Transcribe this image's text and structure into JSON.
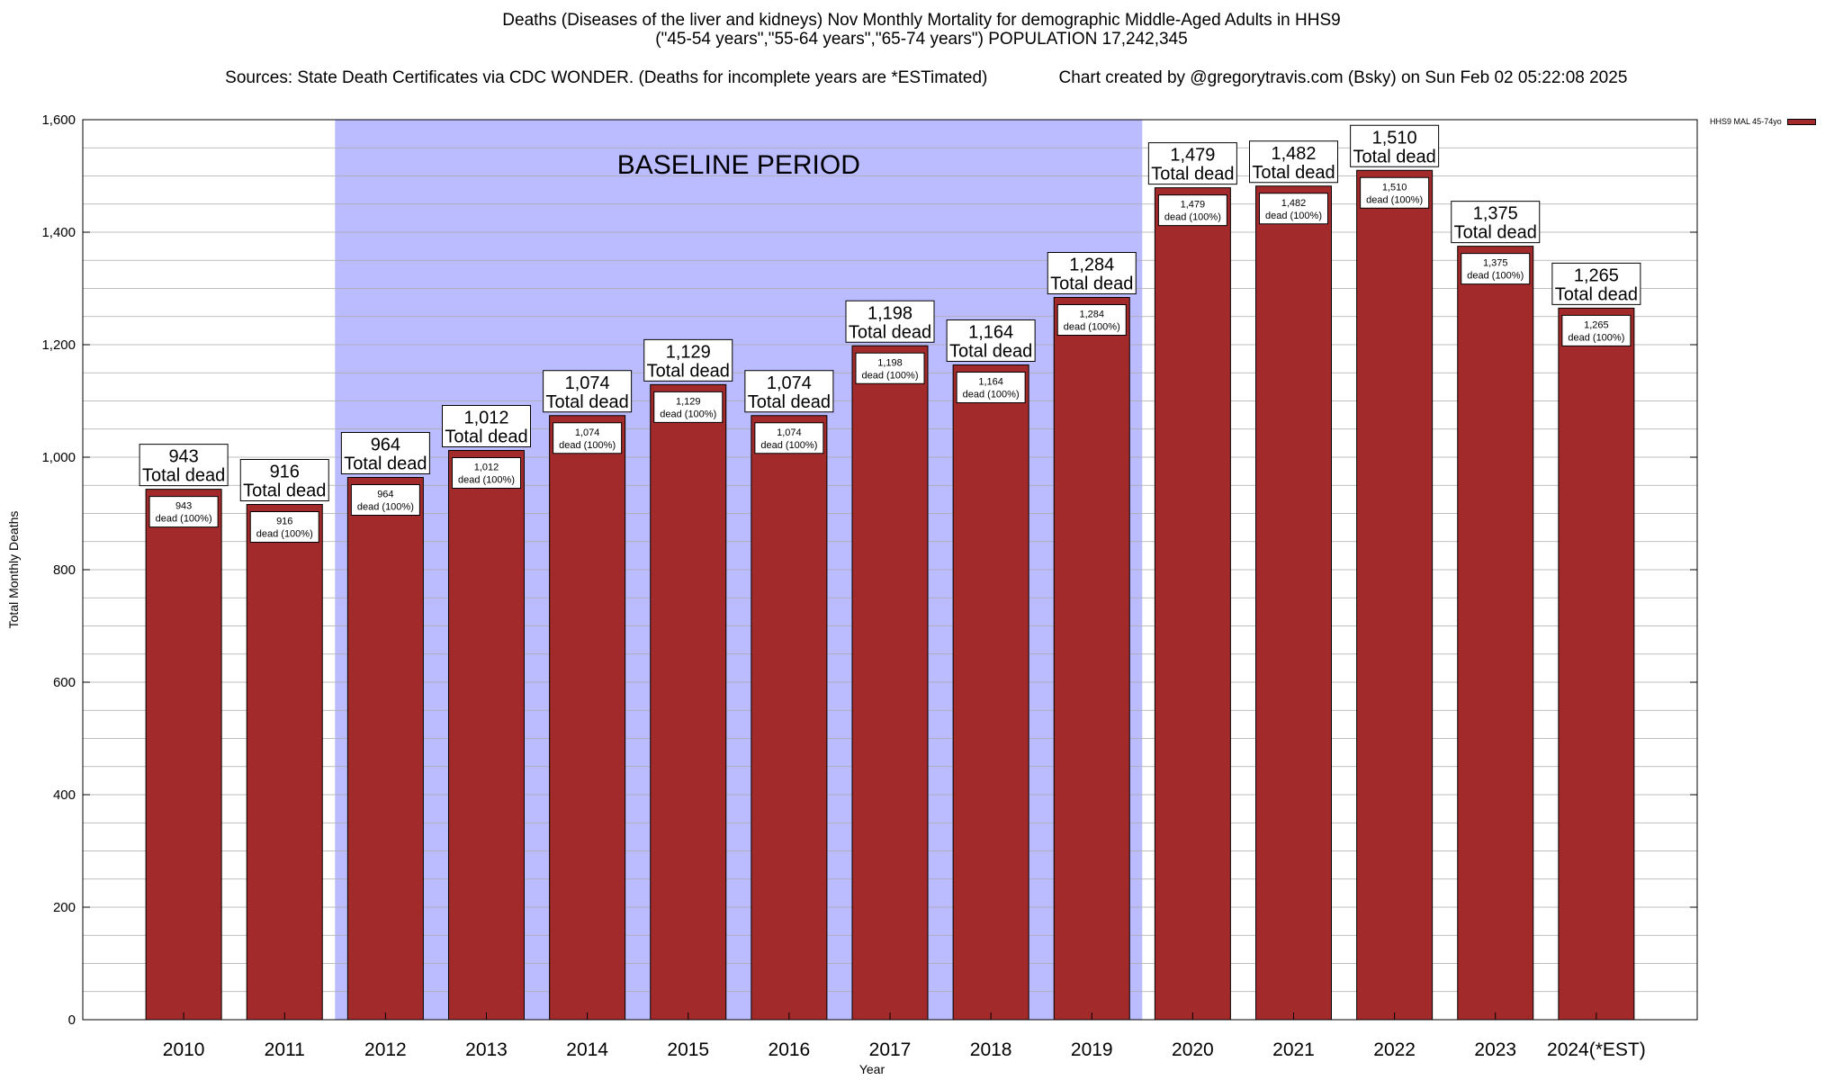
{
  "title": {
    "line1": "Deaths (Diseases of the liver and kidneys) Nov Monthly Mortality for demographic Middle-Aged Adults in HHS9",
    "line2": "(\"45-54 years\",\"55-64 years\",\"65-74 years\") POPULATION 17,242,345",
    "line3_left": "Sources: State Death Certificates via CDC WONDER. (Deaths for incomplete years are *ESTimated)",
    "line3_right": "Chart created by @gregorytravis.com (Bsky) on Sun Feb 02 05:22:08 2025"
  },
  "legend": {
    "label": "HHS9 MAL 45-74yo",
    "color": "#a32a2a"
  },
  "baseline_label": "BASELINE PERIOD",
  "colors": {
    "bar": "#a32a2a",
    "baseline_band": "#bbbbff",
    "grid": "#aaaaaa"
  },
  "chart_data": {
    "type": "bar",
    "title": "Deaths (Diseases of the liver and kidneys) Nov Monthly Mortality for demographic Middle-Aged Adults in HHS9",
    "xlabel": "Year",
    "ylabel": "Total Monthly Deaths",
    "ylim": [
      0,
      1600
    ],
    "yticks": [
      0,
      200,
      400,
      600,
      800,
      1000,
      1200,
      1400,
      1600
    ],
    "ytick_labels": [
      "0",
      "200",
      "400",
      "600",
      "800",
      "1,000",
      "1,200",
      "1,400",
      "1,600"
    ],
    "categories": [
      "2010",
      "2011",
      "2012",
      "2013",
      "2014",
      "2015",
      "2016",
      "2017",
      "2018",
      "2019",
      "2020",
      "2021",
      "2022",
      "2023",
      "2024(*EST)"
    ],
    "series": [
      {
        "name": "HHS9 MAL 45-74yo",
        "values": [
          943,
          916,
          964,
          1012,
          1074,
          1129,
          1074,
          1198,
          1164,
          1284,
          1479,
          1482,
          1510,
          1375,
          1265
        ]
      }
    ],
    "value_labels": [
      "943",
      "916",
      "964",
      "1,012",
      "1,074",
      "1,129",
      "1,074",
      "1,198",
      "1,164",
      "1,284",
      "1,479",
      "1,482",
      "1,510",
      "1,375",
      "1,265"
    ],
    "total_label": "Total dead",
    "inner_label": "dead (100%)",
    "baseline_period": {
      "from": "2012",
      "to": "2019"
    },
    "grid": true,
    "legend_position": "top-right"
  }
}
